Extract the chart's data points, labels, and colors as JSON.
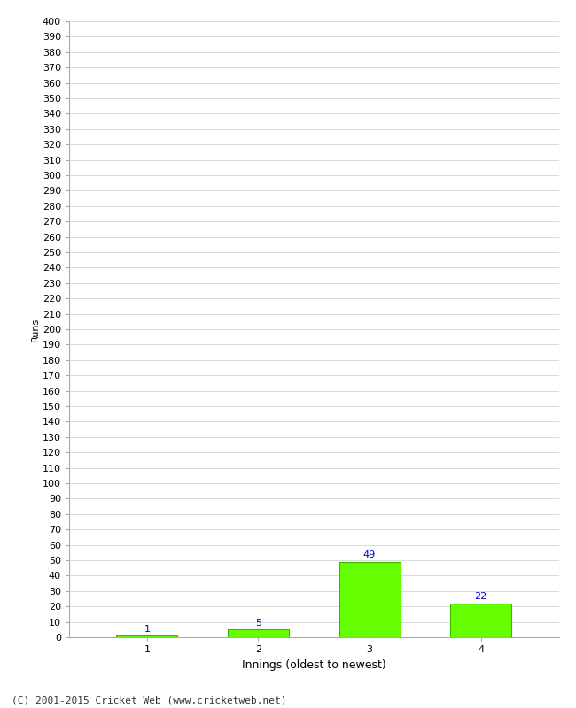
{
  "categories": [
    1,
    2,
    3,
    4
  ],
  "values": [
    1,
    5,
    49,
    22
  ],
  "bar_color": "#66ff00",
  "bar_edge_color": "#33bb00",
  "ylabel": "Runs",
  "xlabel": "Innings (oldest to newest)",
  "ylim": [
    0,
    400
  ],
  "yticks": [
    0,
    10,
    20,
    30,
    40,
    50,
    60,
    70,
    80,
    90,
    100,
    110,
    120,
    130,
    140,
    150,
    160,
    170,
    180,
    190,
    200,
    210,
    220,
    230,
    240,
    250,
    260,
    270,
    280,
    290,
    300,
    310,
    320,
    330,
    340,
    350,
    360,
    370,
    380,
    390,
    400
  ],
  "label_color": "#0000cc",
  "label_fontsize": 8,
  "tick_fontsize": 8,
  "xlabel_fontsize": 9,
  "ylabel_fontsize": 8,
  "footer_text": "(C) 2001-2015 Cricket Web (www.cricketweb.net)",
  "footer_fontsize": 8,
  "background_color": "#ffffff",
  "grid_color": "#cccccc",
  "spine_color": "#aaaaaa"
}
